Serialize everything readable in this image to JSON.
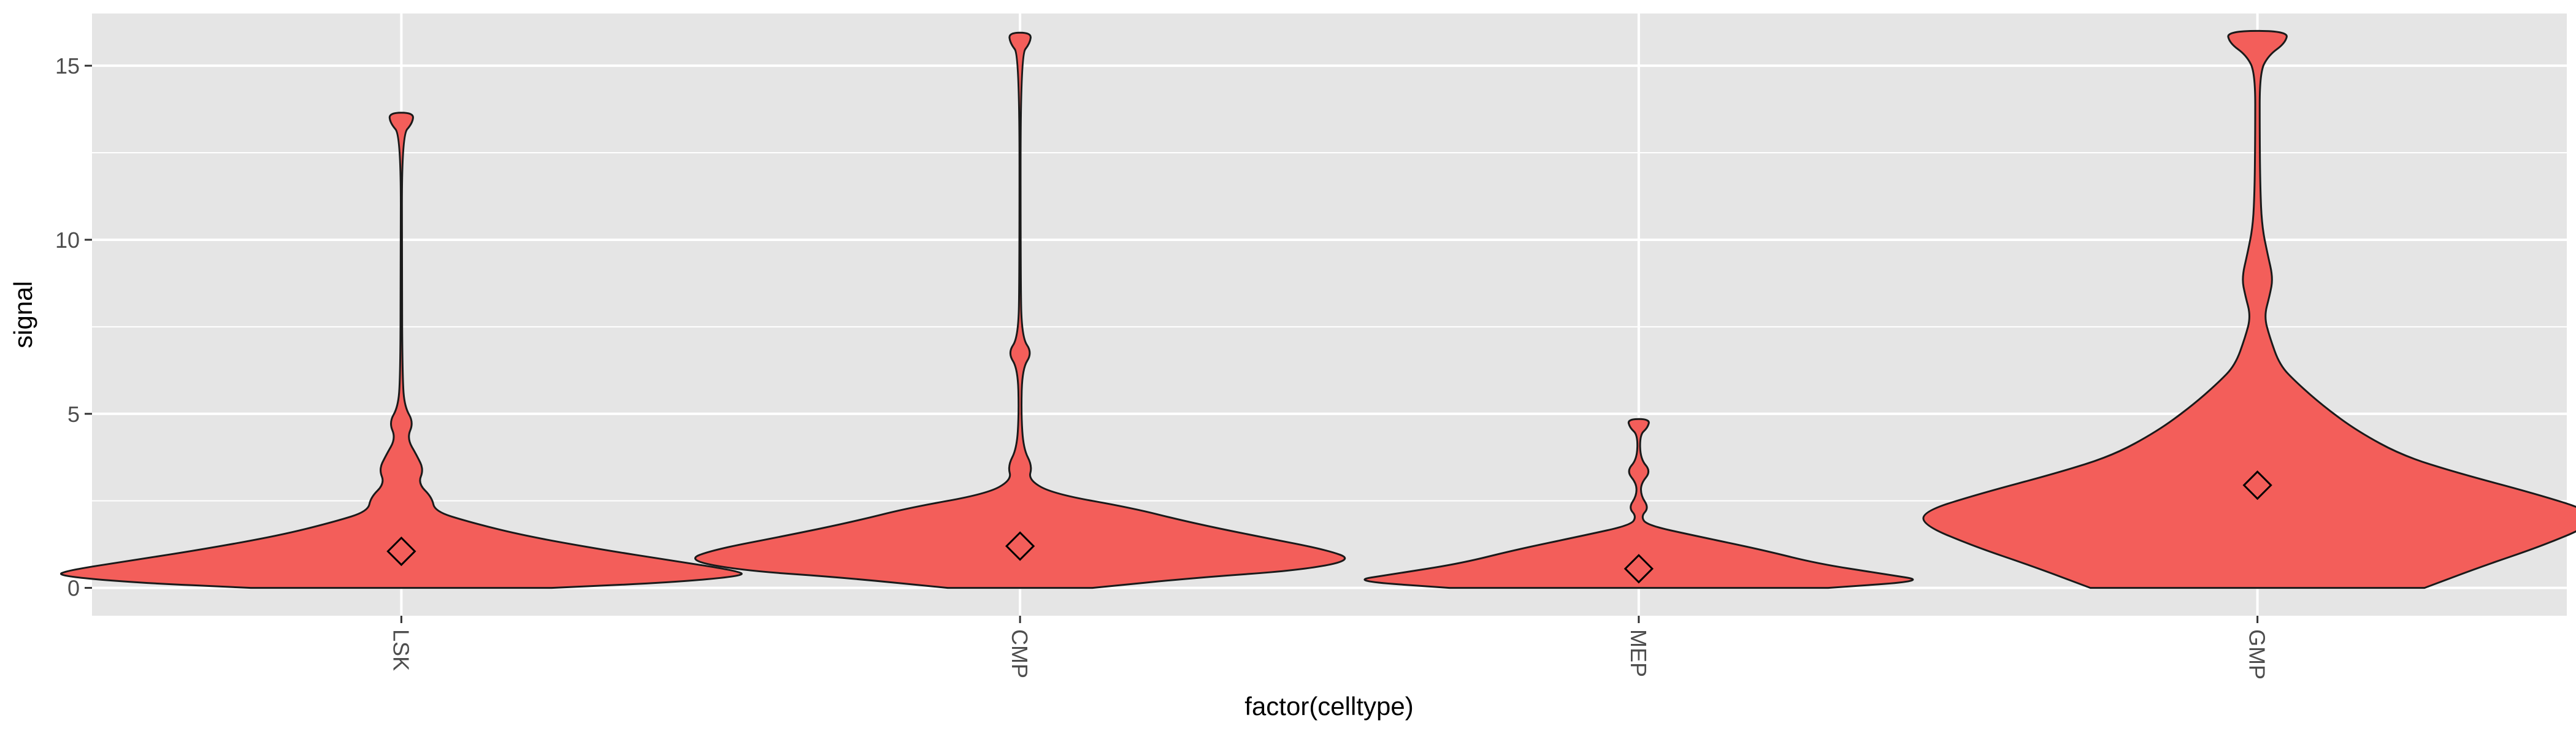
{
  "chart_data": {
    "type": "violin",
    "xlabel": "factor(celltype)",
    "ylabel": "signal",
    "categories": [
      "LSK",
      "CMP",
      "MEP",
      "GMP"
    ],
    "ylim": [
      -0.8,
      16.5
    ],
    "yticks": [
      0,
      5,
      10,
      15
    ],
    "grid": true,
    "colors": {
      "fill": "#f35e5a",
      "panel": "#e5e5e5",
      "grid": "#ffffff",
      "outline": "#1a1a1a"
    },
    "series": [
      {
        "category": "LSK",
        "mean": 1.05,
        "profile": [
          [
            0,
            0.27
          ],
          [
            0.15,
            0.48
          ],
          [
            0.35,
            0.62
          ],
          [
            0.5,
            0.6
          ],
          [
            0.8,
            0.48
          ],
          [
            1.1,
            0.36
          ],
          [
            1.5,
            0.22
          ],
          [
            1.9,
            0.12
          ],
          [
            2.2,
            0.06
          ],
          [
            2.6,
            0.055
          ],
          [
            3.0,
            0.03
          ],
          [
            3.4,
            0.04
          ],
          [
            3.8,
            0.028
          ],
          [
            4.3,
            0.01
          ],
          [
            4.75,
            0.022
          ],
          [
            5.2,
            0.006
          ],
          [
            6,
            0.002
          ],
          [
            9,
            0.001
          ],
          [
            13.0,
            0.001
          ],
          [
            13.35,
            0.02
          ],
          [
            13.65,
            0.022
          ]
        ]
      },
      {
        "category": "CMP",
        "mean": 1.2,
        "profile": [
          [
            0,
            0.13
          ],
          [
            0.3,
            0.32
          ],
          [
            0.5,
            0.5
          ],
          [
            0.8,
            0.6
          ],
          [
            1.1,
            0.55
          ],
          [
            1.5,
            0.42
          ],
          [
            1.9,
            0.3
          ],
          [
            2.3,
            0.2
          ],
          [
            2.7,
            0.06
          ],
          [
            3.1,
            0.015
          ],
          [
            3.5,
            0.022
          ],
          [
            4.0,
            0.006
          ],
          [
            5,
            0.002
          ],
          [
            6.3,
            0.004
          ],
          [
            6.75,
            0.022
          ],
          [
            7.2,
            0.003
          ],
          [
            9,
            0.001
          ],
          [
            15.3,
            0.001
          ],
          [
            15.65,
            0.018
          ],
          [
            15.95,
            0.02
          ]
        ]
      },
      {
        "category": "MEP",
        "mean": 0.55,
        "profile": [
          [
            0,
            0.34
          ],
          [
            0.2,
            0.52
          ],
          [
            0.4,
            0.44
          ],
          [
            0.7,
            0.32
          ],
          [
            1.1,
            0.22
          ],
          [
            1.5,
            0.1
          ],
          [
            1.8,
            0.015
          ],
          [
            2.05,
            0.004
          ],
          [
            2.3,
            0.018
          ],
          [
            2.65,
            0.004
          ],
          [
            3.0,
            0.004
          ],
          [
            3.35,
            0.022
          ],
          [
            3.7,
            0.003
          ],
          [
            4.4,
            0.002
          ],
          [
            4.6,
            0.016
          ],
          [
            4.85,
            0.02
          ]
        ]
      },
      {
        "category": "GMP",
        "mean": 2.95,
        "profile": [
          [
            0,
            0.3
          ],
          [
            0.6,
            0.4
          ],
          [
            1.2,
            0.51
          ],
          [
            1.8,
            0.6
          ],
          [
            2.2,
            0.6
          ],
          [
            2.7,
            0.5
          ],
          [
            3.3,
            0.36
          ],
          [
            3.8,
            0.26
          ],
          [
            4.5,
            0.18
          ],
          [
            5.2,
            0.12
          ],
          [
            5.9,
            0.07
          ],
          [
            6.4,
            0.04
          ],
          [
            7.2,
            0.022
          ],
          [
            7.8,
            0.012
          ],
          [
            8.4,
            0.022
          ],
          [
            8.9,
            0.028
          ],
          [
            9.6,
            0.018
          ],
          [
            10.4,
            0.008
          ],
          [
            11.5,
            0.005
          ],
          [
            13,
            0.004
          ],
          [
            14.8,
            0.004
          ],
          [
            15.3,
            0.02
          ],
          [
            15.65,
            0.05
          ],
          [
            16.0,
            0.055
          ]
        ]
      }
    ]
  }
}
